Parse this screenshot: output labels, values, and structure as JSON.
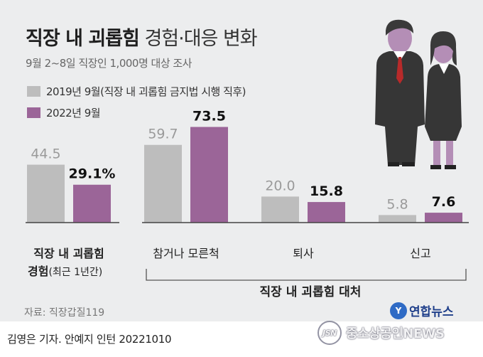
{
  "header": {
    "title_bold": "직장 내 괴롭힘",
    "title_light": "경험·대응 변화",
    "subtitle": "9월 2~8일 직장인 1,000명 대상 조사"
  },
  "legend": [
    {
      "label": "2019년 9월(직장 내 괴롭힘 금지법 시행 직후)",
      "color": "#bdbdbd"
    },
    {
      "label": "2022년 9월",
      "color": "#9b6598"
    }
  ],
  "chart_data": {
    "type": "bar",
    "title": "직장 내 괴롭힘 경험·대응 변화",
    "series": [
      {
        "name": "2019년 9월(직장 내 괴롭힘 금지법 시행 직후)",
        "color": "#bdbdbd"
      },
      {
        "name": "2022년 9월",
        "color": "#9b6598"
      }
    ],
    "groups": [
      {
        "category": "직장 내 괴롭힘 경험(최근 1년간)",
        "category_lines": [
          "직장 내 괴롭힘",
          "경험"
        ],
        "category_suffix": "(최근 1년간)",
        "values": [
          44.5,
          29.1
        ],
        "value_labels": [
          "44.5",
          "29.1%"
        ]
      },
      {
        "category": "참거나 모른척",
        "values": [
          59.7,
          73.5
        ],
        "value_labels": [
          "59.7",
          "73.5"
        ]
      },
      {
        "category": "퇴사",
        "values": [
          20.0,
          15.8
        ],
        "value_labels": [
          "20.0",
          "15.8"
        ]
      },
      {
        "category": "신고",
        "values": [
          5.8,
          7.6
        ],
        "value_labels": [
          "5.8",
          "7.6"
        ]
      }
    ],
    "group_label": "직장 내 괴롭힘 대처",
    "ylim": [
      0,
      80
    ]
  },
  "source": "자료: 직장갑질119",
  "credit": "김영은 기자. 안예지 인턴  20221010",
  "agency": {
    "logo": "Y",
    "name": "연합뉴스"
  },
  "watermark": {
    "badge": "JSN",
    "text": "중소상공인NEWS"
  }
}
